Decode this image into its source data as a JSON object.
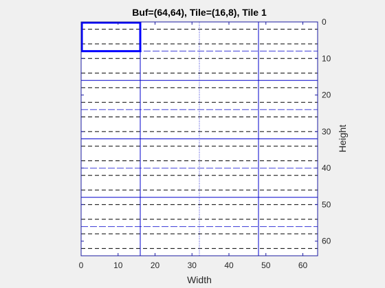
{
  "figure": {
    "title": "Buf=(64,64), Tile=(16,8), Tile 1"
  },
  "chart_data": {
    "type": "tile-grid",
    "title": "Buf=(64,64), Tile=(16,8), Tile 1",
    "xlabel": "Width",
    "ylabel": "Height",
    "xlim": [
      0,
      64
    ],
    "ylim": [
      0,
      64
    ],
    "y_axis_location": "right",
    "y_direction": "reversed",
    "x_ticks": [
      0,
      10,
      20,
      30,
      40,
      50,
      60
    ],
    "y_ticks": [
      0,
      10,
      20,
      30,
      40,
      50,
      60
    ],
    "buffer_size": [
      64,
      64
    ],
    "tile_size": [
      16,
      8
    ],
    "tile_boundaries_x": [
      16,
      32,
      48
    ],
    "tile_boundaries_y": [
      8,
      16,
      24,
      32,
      40,
      48,
      56
    ],
    "row_dashed_lines_y": [
      2,
      6,
      10,
      14,
      18,
      22,
      26,
      30,
      34,
      38,
      42,
      46,
      50,
      54,
      58,
      62
    ],
    "highlighted_tile": {
      "index": 1,
      "x_range": [
        0,
        16
      ],
      "y_range": [
        0,
        8
      ]
    },
    "colors": {
      "background": "#f0f0f0",
      "axes_background": "#ffffff",
      "axes": "#1a1aa0",
      "tile_boundary": "#0000cc",
      "highlight": "#0000ff",
      "dashed": "#000000"
    }
  }
}
